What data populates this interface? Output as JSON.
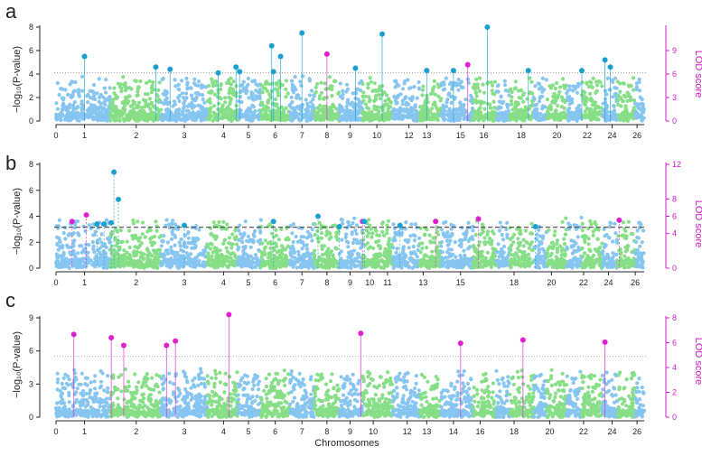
{
  "colors": {
    "chr_odd": "#86c5f0",
    "chr_even": "#86de86",
    "gwas_sig": "#1a9fd0",
    "lod_sig": "#e020d0",
    "lod_axis": "#d018c8",
    "threshold": "#888888",
    "axis": "#222222"
  },
  "figure": {
    "xlabel": "Chromosomes"
  },
  "chart_data": [
    {
      "type": "scatter",
      "panel_label": "a",
      "ylabel": "−log₁₀(P-value)",
      "ylim": [
        0,
        8
      ],
      "yticks": [
        0,
        2,
        4,
        6,
        8
      ],
      "ylabel_right": "LOD score",
      "ylim_right": [
        0,
        12
      ],
      "yticks_right": [
        0,
        3,
        6,
        9
      ],
      "x_ticks": [
        {
          "label": "0",
          "x": 0
        },
        {
          "label": "1",
          "x": 3.2
        },
        {
          "label": "2",
          "x": 9
        },
        {
          "label": "3",
          "x": 14.4
        },
        {
          "label": "4",
          "x": 18.8
        },
        {
          "label": "5",
          "x": 21.6
        },
        {
          "label": "6",
          "x": 24.6
        },
        {
          "label": "7",
          "x": 27.6
        },
        {
          "label": "8",
          "x": 30.4
        },
        {
          "label": "9",
          "x": 33
        },
        {
          "label": "10",
          "x": 36
        },
        {
          "label": "12",
          "x": 39.6
        },
        {
          "label": "13",
          "x": 41.6
        },
        {
          "label": "15",
          "x": 45.4
        },
        {
          "label": "16",
          "x": 48
        },
        {
          "label": "18",
          "x": 52.2
        },
        {
          "label": "20",
          "x": 56.2
        },
        {
          "label": "22",
          "x": 59.6
        },
        {
          "label": "24",
          "x": 62.4
        },
        {
          "label": "26",
          "x": 65.2
        }
      ],
      "chromosome_bounds": [
        0,
        6.1,
        11.8,
        17,
        20.4,
        23,
        26.2,
        29,
        31.8,
        34.4,
        37.8,
        40.8,
        43.2,
        46.8,
        49.4,
        50.9,
        53.6,
        55.1,
        57.3,
        59,
        61.3,
        63,
        65,
        66
      ],
      "threshold": 4.1,
      "threshold_style": "dotted",
      "peaks": [
        {
          "x": 3.2,
          "y": 5.5,
          "kind": "gwas"
        },
        {
          "x": 11.2,
          "y": 4.6,
          "kind": "gwas"
        },
        {
          "x": 12.8,
          "y": 4.4,
          "kind": "gwas"
        },
        {
          "x": 18.2,
          "y": 4.1,
          "kind": "gwas"
        },
        {
          "x": 20.2,
          "y": 4.6,
          "kind": "gwas"
        },
        {
          "x": 20.6,
          "y": 4.2,
          "kind": "gwas"
        },
        {
          "x": 24.2,
          "y": 6.4,
          "kind": "gwas"
        },
        {
          "x": 24.4,
          "y": 4.2,
          "kind": "gwas"
        },
        {
          "x": 25.2,
          "y": 5.5,
          "kind": "gwas"
        },
        {
          "x": 27.6,
          "y": 7.5,
          "kind": "gwas"
        },
        {
          "x": 30.4,
          "y": 5.7,
          "kind": "lod"
        },
        {
          "x": 33.6,
          "y": 4.5,
          "kind": "gwas"
        },
        {
          "x": 36.6,
          "y": 7.4,
          "kind": "gwas"
        },
        {
          "x": 41.6,
          "y": 4.3,
          "kind": "gwas"
        },
        {
          "x": 44.6,
          "y": 4.3,
          "kind": "gwas"
        },
        {
          "x": 46.2,
          "y": 4.8,
          "kind": "lod"
        },
        {
          "x": 48.4,
          "y": 8,
          "kind": "gwas"
        },
        {
          "x": 53,
          "y": 4.3,
          "kind": "gwas"
        },
        {
          "x": 59,
          "y": 4.3,
          "kind": "gwas"
        },
        {
          "x": 61.6,
          "y": 5.2,
          "kind": "gwas"
        },
        {
          "x": 62.2,
          "y": 4.6,
          "kind": "gwas"
        }
      ]
    },
    {
      "type": "scatter",
      "panel_label": "b",
      "ylabel": "−log₁₀(P-value)",
      "ylim": [
        0,
        8
      ],
      "yticks": [
        0,
        2,
        4,
        6,
        8
      ],
      "ylabel_right": "LOD score",
      "ylim_right": [
        0,
        12
      ],
      "yticks_right": [
        0,
        4,
        6,
        8,
        12
      ],
      "x_ticks": [
        {
          "label": "0",
          "x": 0
        },
        {
          "label": "1",
          "x": 3.2
        },
        {
          "label": "2",
          "x": 9
        },
        {
          "label": "3",
          "x": 14.4
        },
        {
          "label": "4",
          "x": 18.8
        },
        {
          "label": "5",
          "x": 21.6
        },
        {
          "label": "6",
          "x": 24.6
        },
        {
          "label": "7",
          "x": 27.6
        },
        {
          "label": "8",
          "x": 30.4
        },
        {
          "label": "9",
          "x": 33
        },
        {
          "label": "10",
          "x": 35.2
        },
        {
          "label": "11",
          "x": 37.2
        },
        {
          "label": "13",
          "x": 41.2
        },
        {
          "label": "15",
          "x": 45.4
        },
        {
          "label": "18",
          "x": 51.4
        },
        {
          "label": "20",
          "x": 55.6
        },
        {
          "label": "22",
          "x": 59.2
        },
        {
          "label": "24",
          "x": 62
        },
        {
          "label": "26",
          "x": 65
        }
      ],
      "chromosome_bounds": [
        0,
        6.1,
        11.8,
        17,
        20.4,
        23,
        26.2,
        29,
        31.8,
        34.4,
        37.8,
        40.8,
        43.2,
        46.8,
        49.4,
        50.9,
        53.6,
        55.1,
        57.3,
        59,
        61.3,
        63,
        65,
        66
      ],
      "threshold": 3.15,
      "threshold_style": "dashed",
      "peaks": [
        {
          "x": 1.8,
          "y": 3.6,
          "kind": "lod"
        },
        {
          "x": 3.4,
          "y": 4.1,
          "kind": "lod"
        },
        {
          "x": 4.6,
          "y": 3.4,
          "kind": "gwas"
        },
        {
          "x": 5.4,
          "y": 3.4,
          "kind": "gwas"
        },
        {
          "x": 6.2,
          "y": 3.5,
          "kind": "gwas"
        },
        {
          "x": 6.5,
          "y": 7.4,
          "kind": "gwas"
        },
        {
          "x": 7.0,
          "y": 5.3,
          "kind": "gwas"
        },
        {
          "x": 14.4,
          "y": 3.3,
          "kind": "gwas"
        },
        {
          "x": 24.4,
          "y": 3.6,
          "kind": "gwas"
        },
        {
          "x": 29.4,
          "y": 4.0,
          "kind": "gwas"
        },
        {
          "x": 31.8,
          "y": 3.2,
          "kind": "gwas"
        },
        {
          "x": 34.4,
          "y": 3.6,
          "kind": "lod"
        },
        {
          "x": 34.6,
          "y": 3.6,
          "kind": "gwas"
        },
        {
          "x": 38.6,
          "y": 3.3,
          "kind": "gwas"
        },
        {
          "x": 42.6,
          "y": 3.6,
          "kind": "lod"
        },
        {
          "x": 47.4,
          "y": 3.8,
          "kind": "lod"
        },
        {
          "x": 53.8,
          "y": 3.2,
          "kind": "gwas"
        },
        {
          "x": 63.2,
          "y": 3.7,
          "kind": "lod"
        }
      ]
    },
    {
      "type": "scatter",
      "panel_label": "c",
      "ylabel": "−log₁₀(P-value)",
      "ylim": [
        0,
        9
      ],
      "yticks": [
        0,
        3,
        6,
        9
      ],
      "ylabel_right": "LOD score",
      "ylim_right": [
        0,
        8
      ],
      "yticks_right": [
        0,
        2,
        4,
        6,
        8
      ],
      "x_ticks": [
        {
          "label": "0",
          "x": 0
        },
        {
          "label": "1",
          "x": 3.2
        },
        {
          "label": "2",
          "x": 9
        },
        {
          "label": "3",
          "x": 14.4
        },
        {
          "label": "4",
          "x": 18.8
        },
        {
          "label": "5",
          "x": 21.6
        },
        {
          "label": "6",
          "x": 24.6
        },
        {
          "label": "7",
          "x": 27.6
        },
        {
          "label": "8",
          "x": 30.4
        },
        {
          "label": "9",
          "x": 33
        },
        {
          "label": "10",
          "x": 35.6
        },
        {
          "label": "12",
          "x": 39.4
        },
        {
          "label": "13",
          "x": 41.6
        },
        {
          "label": "14",
          "x": 44.6
        },
        {
          "label": "16",
          "x": 47.6
        },
        {
          "label": "18",
          "x": 51.4
        },
        {
          "label": "20",
          "x": 55.4
        },
        {
          "label": "22",
          "x": 59.2
        },
        {
          "label": "24",
          "x": 62.4
        },
        {
          "label": "26",
          "x": 65.2
        }
      ],
      "chromosome_bounds": [
        0,
        6.1,
        11.8,
        17,
        20.4,
        23,
        26.2,
        29,
        31.8,
        34.4,
        37.8,
        40.8,
        43.2,
        46.8,
        49.4,
        50.9,
        53.6,
        55.1,
        57.3,
        59,
        61.3,
        63,
        65,
        66
      ],
      "threshold": 5.5,
      "threshold_style": "dotted",
      "peaks": [
        {
          "x": 2.0,
          "y": 7.5,
          "kind": "lod"
        },
        {
          "x": 6.2,
          "y": 7.2,
          "kind": "lod"
        },
        {
          "x": 7.6,
          "y": 6.5,
          "kind": "lod"
        },
        {
          "x": 12.4,
          "y": 6.5,
          "kind": "lod"
        },
        {
          "x": 13.4,
          "y": 6.9,
          "kind": "lod"
        },
        {
          "x": 19.4,
          "y": 9.3,
          "kind": "lod"
        },
        {
          "x": 34.2,
          "y": 7.6,
          "kind": "lod"
        },
        {
          "x": 45.4,
          "y": 6.7,
          "kind": "lod"
        },
        {
          "x": 52.4,
          "y": 7.0,
          "kind": "lod"
        },
        {
          "x": 61.6,
          "y": 6.8,
          "kind": "lod"
        }
      ]
    }
  ]
}
